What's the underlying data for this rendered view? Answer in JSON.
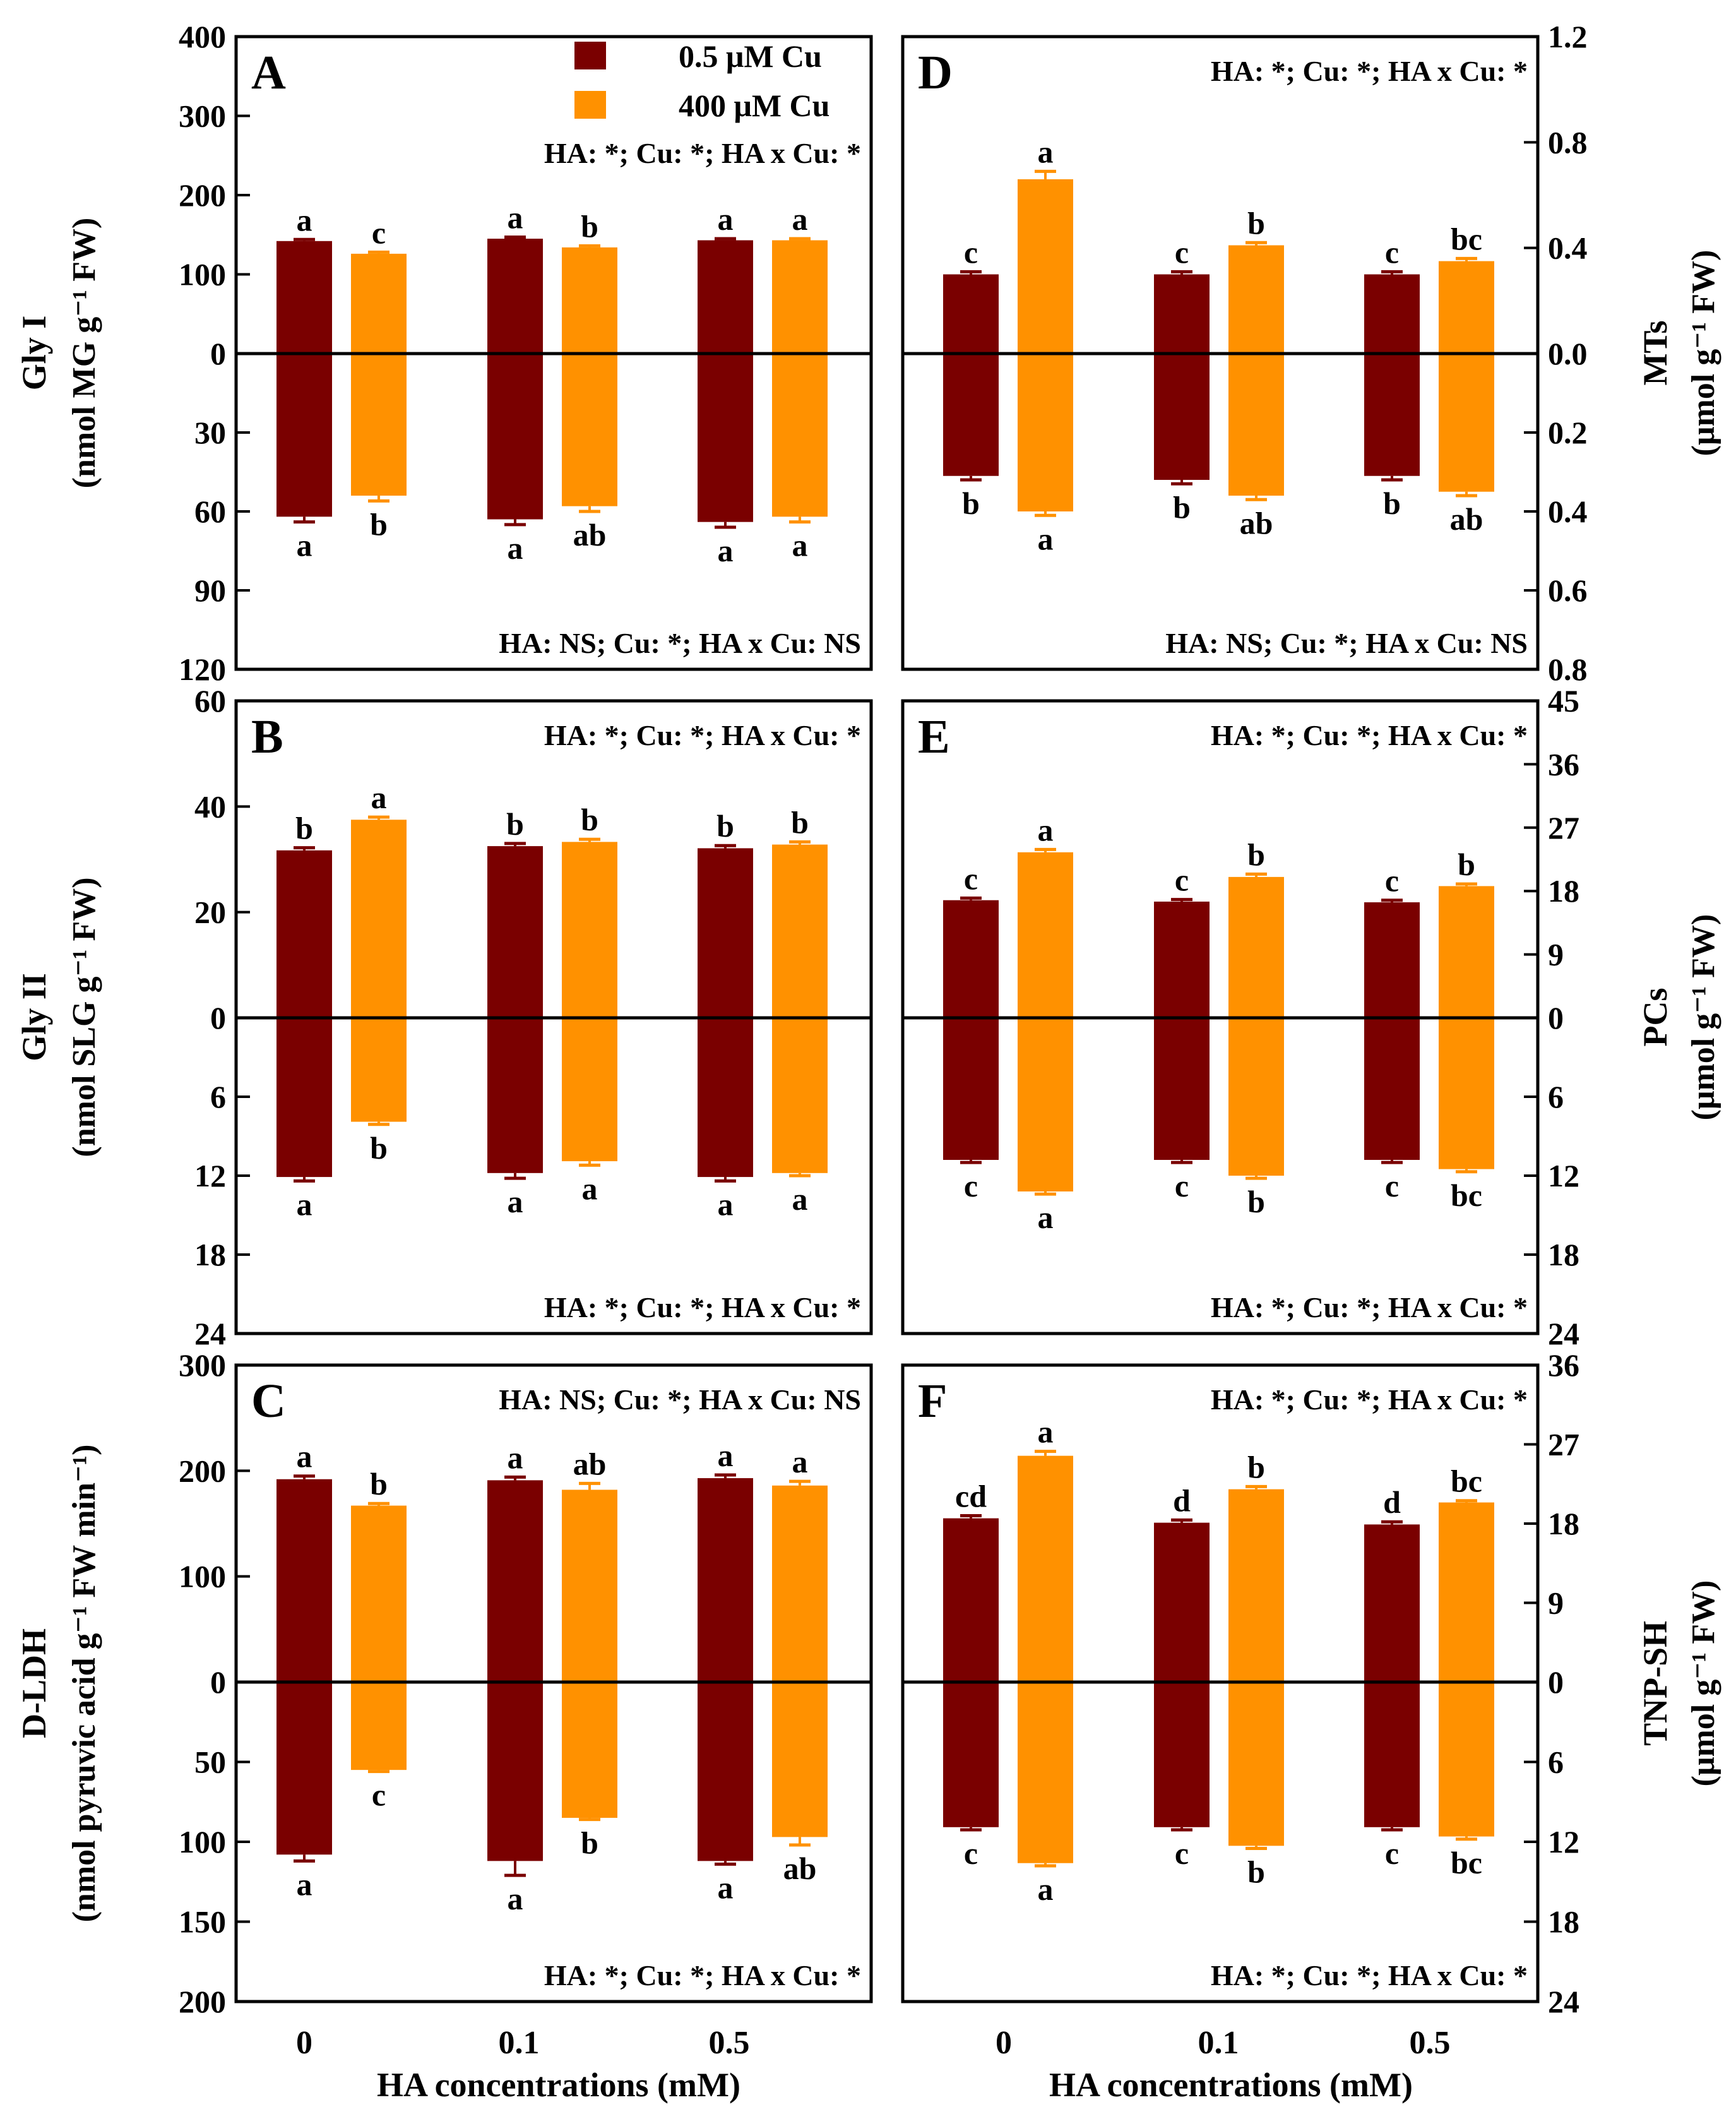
{
  "legend": {
    "series": [
      {
        "name": "0.5 μM Cu",
        "color": "#7a0000"
      },
      {
        "name": "400 μM Cu",
        "color": "#ff9100"
      }
    ]
  },
  "xaxis": {
    "title": "HA concentrations (mM)",
    "ticks": [
      "0",
      "0.1",
      "0.5"
    ]
  },
  "chart_data": [
    {
      "type": "bar",
      "panel": "A",
      "series_names": [
        "0.5 μM Cu",
        "400 μM Cu"
      ],
      "categories": [
        "0",
        "0.1",
        "0.5"
      ],
      "ylabel_line1": "Gly I",
      "ylabel_line2": "(nmol MG g⁻¹ FW)",
      "axis_side": "left",
      "top": {
        "ylim": [
          0,
          400
        ],
        "ticks": [
          "0",
          "100",
          "200",
          "300",
          "400"
        ],
        "values": [
          [
            142,
            145,
            143
          ],
          [
            126,
            134,
            143
          ]
        ],
        "errors": [
          [
            2,
            2,
            2
          ],
          [
            2,
            2,
            2
          ]
        ],
        "letters": [
          [
            "a",
            "a",
            "a"
          ],
          [
            "c",
            "b",
            "a"
          ]
        ],
        "stat": "HA: *; Cu: *; HA x Cu: *"
      },
      "bottom": {
        "ylim": [
          0,
          120
        ],
        "ticks": [
          "0",
          "30",
          "60",
          "90",
          "120"
        ],
        "values": [
          [
            62,
            63,
            64
          ],
          [
            54,
            58,
            62
          ]
        ],
        "errors": [
          [
            2,
            2,
            2
          ],
          [
            2,
            2,
            2
          ]
        ],
        "letters": [
          [
            "a",
            "a",
            "a"
          ],
          [
            "b",
            "ab",
            "a"
          ]
        ],
        "stat": "HA: NS; Cu: *; HA x Cu: NS"
      }
    },
    {
      "type": "bar",
      "panel": "B",
      "series_names": [
        "0.5 μM Cu",
        "400 μM Cu"
      ],
      "categories": [
        "0",
        "0.1",
        "0.5"
      ],
      "ylabel_line1": "Gly II",
      "ylabel_line2": "(nmol SLG g⁻¹ FW)",
      "axis_side": "left",
      "top": {
        "ylim": [
          0,
          60
        ],
        "ticks": [
          "0",
          "20",
          "40",
          "60"
        ],
        "values": [
          [
            31.7,
            32.5,
            32.1
          ],
          [
            37.5,
            33.3,
            32.8
          ]
        ],
        "errors": [
          [
            0.5,
            0.5,
            0.5
          ],
          [
            0.5,
            0.5,
            0.5
          ]
        ],
        "letters": [
          [
            "b",
            "b",
            "b"
          ],
          [
            "a",
            "b",
            "b"
          ]
        ],
        "stat": "HA: *; Cu: *; HA x Cu: *"
      },
      "bottom": {
        "ylim": [
          0,
          24
        ],
        "ticks": [
          "0",
          "6",
          "12",
          "18",
          "24"
        ],
        "values": [
          [
            12.1,
            11.8,
            12.1
          ],
          [
            7.9,
            10.9,
            11.8
          ]
        ],
        "errors": [
          [
            0.3,
            0.4,
            0.3
          ],
          [
            0.2,
            0.3,
            0.2
          ]
        ],
        "letters": [
          [
            "a",
            "a",
            "a"
          ],
          [
            "b",
            "a",
            "a"
          ]
        ],
        "stat": "HA: *; Cu: *; HA x Cu: *"
      }
    },
    {
      "type": "bar",
      "panel": "C",
      "series_names": [
        "0.5 μM Cu",
        "400 μM Cu"
      ],
      "categories": [
        "0",
        "0.1",
        "0.5"
      ],
      "ylabel_line1": "D-LDH",
      "ylabel_line2": "(nmol pyruvic acid g⁻¹ FW min⁻¹)",
      "axis_side": "left",
      "top": {
        "ylim": [
          0,
          300
        ],
        "ticks": [
          "0",
          "100",
          "200",
          "300"
        ],
        "values": [
          [
            192,
            191,
            193
          ],
          [
            167,
            182,
            186
          ]
        ],
        "errors": [
          [
            3,
            3,
            3
          ],
          [
            2,
            6,
            4
          ]
        ],
        "letters": [
          [
            "a",
            "a",
            "a"
          ],
          [
            "b",
            "ab",
            "a"
          ]
        ],
        "stat": "HA: NS; Cu: *; HA x Cu: NS"
      },
      "bottom": {
        "ylim": [
          0,
          200
        ],
        "ticks": [
          "0",
          "50",
          "100",
          "150",
          "200"
        ],
        "values": [
          [
            108,
            112,
            112
          ],
          [
            55,
            85,
            97
          ]
        ],
        "errors": [
          [
            4,
            9,
            2
          ],
          [
            1,
            1,
            5
          ]
        ],
        "letters": [
          [
            "a",
            "a",
            "a"
          ],
          [
            "c",
            "b",
            "ab"
          ]
        ],
        "stat": "HA: *; Cu: *; HA x Cu: *"
      }
    },
    {
      "type": "bar",
      "panel": "D",
      "series_names": [
        "0.5 μM Cu",
        "400 μM Cu"
      ],
      "categories": [
        "0",
        "0.1",
        "0.5"
      ],
      "ylabel_line1": "MTs",
      "ylabel_line2": "(μmol g⁻¹ FW)",
      "axis_side": "right",
      "top": {
        "ylim": [
          0,
          1.2
        ],
        "ticks": [
          "0.0",
          "0.4",
          "0.8",
          "1.2"
        ],
        "values": [
          [
            0.3,
            0.3,
            0.3
          ],
          [
            0.66,
            0.41,
            0.35
          ]
        ],
        "errors": [
          [
            0.01,
            0.01,
            0.01
          ],
          [
            0.03,
            0.01,
            0.01
          ]
        ],
        "letters": [
          [
            "c",
            "c",
            "c"
          ],
          [
            "a",
            "b",
            "bc"
          ]
        ],
        "stat": "HA: *; Cu: *; HA x Cu: *"
      },
      "bottom": {
        "ylim": [
          0,
          0.8
        ],
        "ticks": [
          "0.0",
          "0.2",
          "0.4",
          "0.6",
          "0.8"
        ],
        "values": [
          [
            0.31,
            0.32,
            0.31
          ],
          [
            0.4,
            0.36,
            0.35
          ]
        ],
        "errors": [
          [
            0.01,
            0.01,
            0.01
          ],
          [
            0.01,
            0.01,
            0.01
          ]
        ],
        "letters": [
          [
            "b",
            "b",
            "b"
          ],
          [
            "a",
            "ab",
            "ab"
          ]
        ],
        "stat": "HA: NS; Cu: *; HA x Cu: NS"
      }
    },
    {
      "type": "bar",
      "panel": "E",
      "series_names": [
        "0.5 μM Cu",
        "400 μM Cu"
      ],
      "categories": [
        "0",
        "0.1",
        "0.5"
      ],
      "ylabel_line1": "PCs",
      "ylabel_line2": "(μmol g⁻¹ FW)",
      "axis_side": "right",
      "top": {
        "ylim": [
          0,
          45
        ],
        "ticks": [
          "0",
          "9",
          "18",
          "27",
          "36",
          "45"
        ],
        "values": [
          [
            16.7,
            16.5,
            16.4
          ],
          [
            23.5,
            20.0,
            18.7
          ]
        ],
        "errors": [
          [
            0.3,
            0.3,
            0.3
          ],
          [
            0.4,
            0.4,
            0.3
          ]
        ],
        "letters": [
          [
            "c",
            "c",
            "c"
          ],
          [
            "a",
            "b",
            "b"
          ]
        ],
        "stat": "HA: *; Cu: *; HA x Cu: *"
      },
      "bottom": {
        "ylim": [
          0,
          24
        ],
        "ticks": [
          "0",
          "6",
          "12",
          "18",
          "24"
        ],
        "values": [
          [
            10.8,
            10.8,
            10.8
          ],
          [
            13.2,
            12.0,
            11.5
          ]
        ],
        "errors": [
          [
            0.2,
            0.2,
            0.2
          ],
          [
            0.2,
            0.2,
            0.2
          ]
        ],
        "letters": [
          [
            "c",
            "c",
            "c"
          ],
          [
            "a",
            "b",
            "bc"
          ]
        ],
        "stat": "HA: *; Cu: *; HA x Cu: *"
      }
    },
    {
      "type": "bar",
      "panel": "F",
      "series_names": [
        "0.5 μM Cu",
        "400 μM Cu"
      ],
      "categories": [
        "0",
        "0.1",
        "0.5"
      ],
      "ylabel_line1": "TNP-SH",
      "ylabel_line2": "(μmol g⁻¹ FW)",
      "axis_side": "right",
      "top": {
        "ylim": [
          0,
          36
        ],
        "ticks": [
          "0",
          "9",
          "18",
          "27",
          "36"
        ],
        "values": [
          [
            18.6,
            18.1,
            17.9
          ],
          [
            25.7,
            21.9,
            20.4
          ]
        ],
        "errors": [
          [
            0.3,
            0.3,
            0.3
          ],
          [
            0.5,
            0.3,
            0.2
          ]
        ],
        "letters": [
          [
            "cd",
            "d",
            "d"
          ],
          [
            "a",
            "b",
            "bc"
          ]
        ],
        "stat": "HA: *; Cu: *; HA x Cu: *"
      },
      "bottom": {
        "ylim": [
          0,
          24
        ],
        "ticks": [
          "0",
          "6",
          "12",
          "18",
          "24"
        ],
        "values": [
          [
            10.9,
            10.9,
            10.9
          ],
          [
            13.6,
            12.3,
            11.6
          ]
        ],
        "errors": [
          [
            0.2,
            0.2,
            0.2
          ],
          [
            0.2,
            0.2,
            0.2
          ]
        ],
        "letters": [
          [
            "c",
            "c",
            "c"
          ],
          [
            "a",
            "b",
            "bc"
          ]
        ],
        "stat": "HA: *; Cu: *; HA x Cu: *"
      }
    }
  ]
}
